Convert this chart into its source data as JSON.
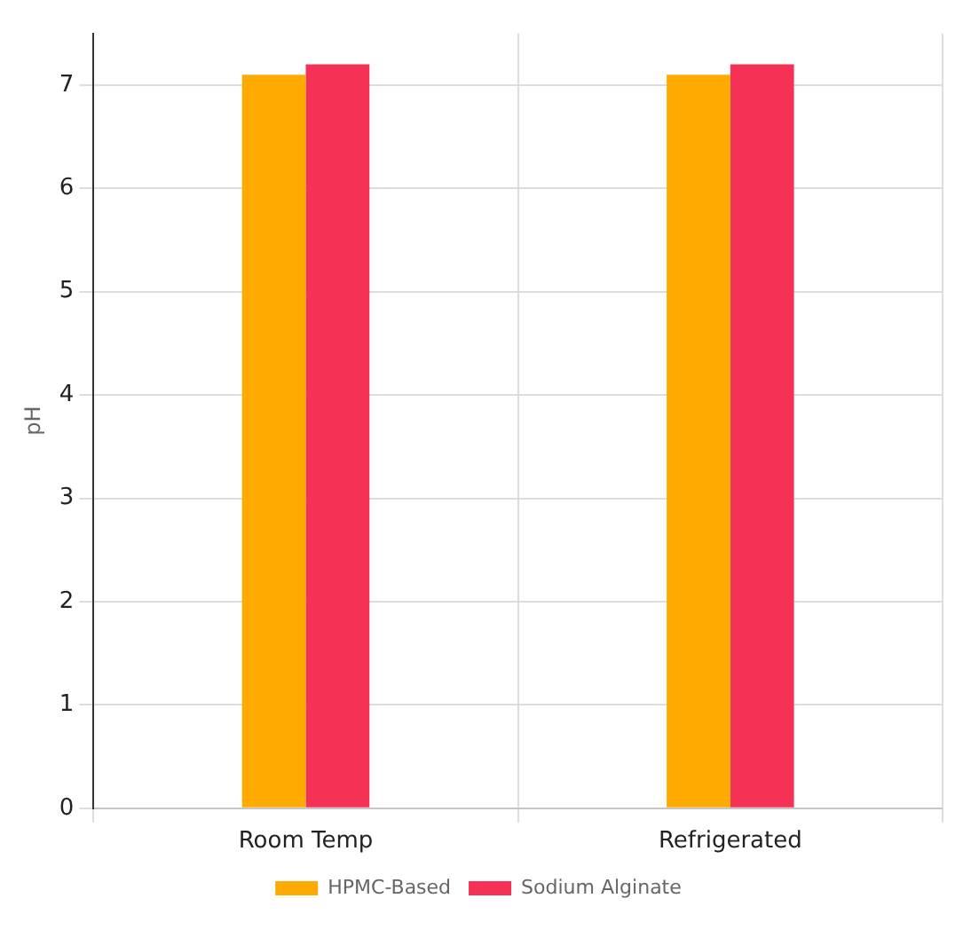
{
  "chart_data": {
    "type": "bar",
    "ylabel": "pH",
    "categories": [
      "Room Temp",
      "Refrigerated"
    ],
    "series": [
      {
        "name": "HPMC-Based",
        "color": "#ffaa00",
        "values": [
          7.1,
          7.1
        ]
      },
      {
        "name": "Sodium Alginate",
        "color": "#f53155",
        "values": [
          7.2,
          7.2
        ]
      }
    ],
    "ylim": [
      0,
      7.5
    ],
    "yticks": [
      0,
      1,
      2,
      3,
      4,
      5,
      6,
      7
    ],
    "grid": true,
    "legend": "bottom"
  }
}
